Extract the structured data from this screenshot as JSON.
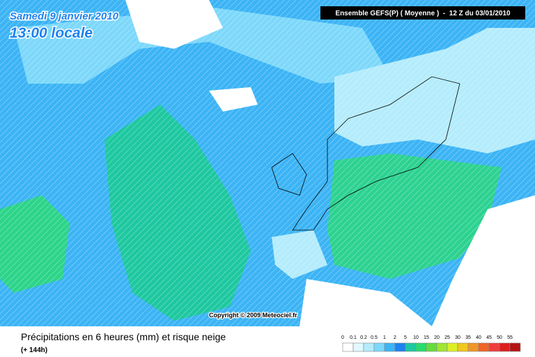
{
  "header": {
    "date": "Samedi 9 janvier 2010",
    "time": "13:00 locale",
    "model": "Ensemble GEFS(P) ( Moyenne )  -  12 Z du 03/01/2010"
  },
  "copyright": "Copyright © 2009 Meteociel.fr",
  "footer": {
    "title": "Précipitations en 6 heures (mm) et risque neige",
    "lead": "(+ 144h)"
  },
  "legend": {
    "labels": [
      0,
      0.1,
      0.2,
      0.5,
      1,
      2,
      5,
      10,
      15,
      20,
      25,
      30,
      35,
      40,
      45,
      50,
      55
    ],
    "colors": [
      "#ffffff",
      "#e0f8ff",
      "#b4ecfc",
      "#7dd8fa",
      "#3cb4f5",
      "#1e82f0",
      "#1ec8a0",
      "#28dc6e",
      "#64dc3c",
      "#a0e632",
      "#dcf028",
      "#f0c81e",
      "#f09628",
      "#f06428",
      "#f03c3c",
      "#dc1e1e",
      "#b41414"
    ]
  }
}
